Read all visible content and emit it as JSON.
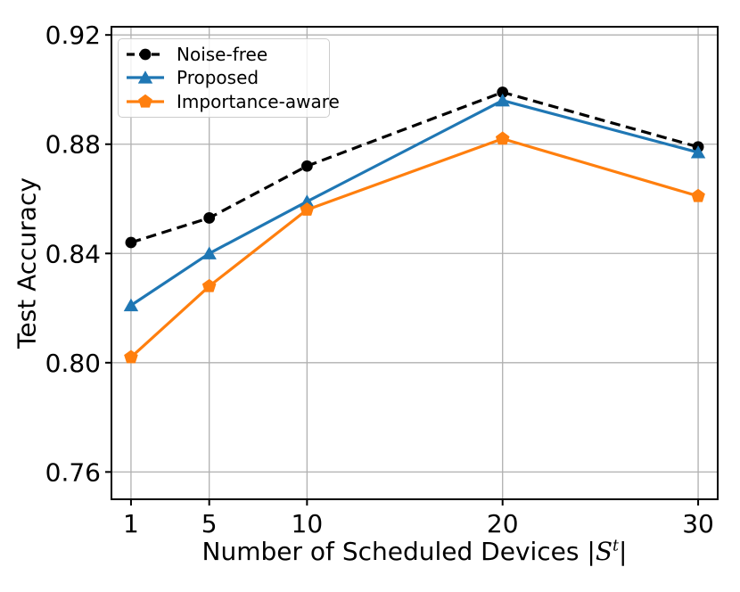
{
  "chart_data": {
    "type": "line",
    "title": "",
    "ylabel": "Test Accuracy",
    "xlabel_prefix": "Number of Scheduled Devices ",
    "xlabel_math": {
      "open_bar": "|",
      "symbol": "S",
      "superscript": "t",
      "close_bar": "|"
    },
    "x": [
      1,
      5,
      10,
      20,
      30
    ],
    "x_tick_values": [
      1,
      5,
      10,
      20,
      30
    ],
    "x_ticks": [
      "1",
      "5",
      "10",
      "20",
      "30"
    ],
    "y_tick_values": [
      0.76,
      0.8,
      0.84,
      0.88,
      0.92
    ],
    "y_ticks": [
      "0.76",
      "0.80",
      "0.84",
      "0.88",
      "0.92"
    ],
    "xlim": [
      0,
      31
    ],
    "ylim": [
      0.75,
      0.923
    ],
    "grid": true,
    "legend_position": "upper left",
    "series": [
      {
        "name": "Noise-free",
        "color": "#000000",
        "line_style": "dashed",
        "marker": "circle",
        "values": [
          0.844,
          0.853,
          0.872,
          0.899,
          0.879
        ]
      },
      {
        "name": "Proposed",
        "color": "#1f77b4",
        "line_style": "solid",
        "marker": "triangle-up",
        "values": [
          0.821,
          0.84,
          0.859,
          0.896,
          0.877
        ]
      },
      {
        "name": "Importance-aware",
        "color": "#ff7f0e",
        "line_style": "solid",
        "marker": "pentagon",
        "values": [
          0.802,
          0.828,
          0.856,
          0.882,
          0.861
        ]
      }
    ],
    "colors": {
      "grid": "#b0b0b0",
      "axis": "#000000",
      "legend_border": "#cccccc",
      "background": "#ffffff"
    }
  }
}
